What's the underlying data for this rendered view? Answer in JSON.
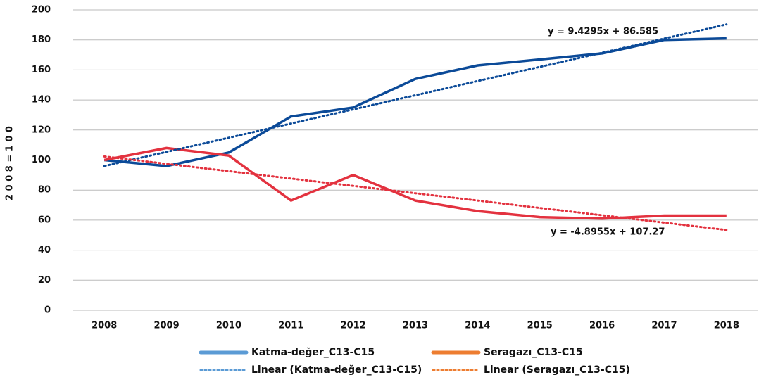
{
  "chart_data": {
    "type": "line",
    "ylabel": "2 0 0 8 = 1 0 0",
    "categories": [
      "2008",
      "2009",
      "2010",
      "2011",
      "2012",
      "2013",
      "2014",
      "2015",
      "2016",
      "2017",
      "2018"
    ],
    "series": [
      {
        "name": "Katma-değer_C13-C15",
        "color": "#0b4a98",
        "legend_color": "#5b9bd5",
        "dashed": false,
        "values": [
          100,
          96,
          105,
          129,
          135,
          154,
          163,
          167,
          171,
          180,
          181
        ]
      },
      {
        "name": "Seragazı_C13-C15",
        "color": "#e3323f",
        "legend_color": "#ed7d31",
        "dashed": false,
        "values": [
          100,
          108,
          103,
          73,
          90,
          73,
          66,
          62,
          61,
          63,
          63
        ]
      },
      {
        "name": "Linear (Katma-değer_C13-C15)",
        "color": "#0b4a98",
        "legend_color": "#5b9bd5",
        "dashed": true,
        "values": [
          96.01,
          105.44,
          114.87,
          124.3,
          133.73,
          143.16,
          152.59,
          162.02,
          171.45,
          180.88,
          190.31
        ]
      },
      {
        "name": "Linear (Seragazı_C13-C15)",
        "color": "#e3323f",
        "legend_color": "#ed7d31",
        "dashed": true,
        "values": [
          102.37,
          97.48,
          92.58,
          87.69,
          82.79,
          77.9,
          73.0,
          68.11,
          63.21,
          58.32,
          53.42
        ]
      }
    ],
    "annotations": [
      "y = 9.4295x + 86.585",
      "y = -4.8955x + 107.27"
    ],
    "ylim": [
      0,
      200
    ],
    "yticks": [
      0,
      20,
      40,
      60,
      80,
      100,
      120,
      140,
      160,
      180,
      200
    ],
    "grid": true
  }
}
